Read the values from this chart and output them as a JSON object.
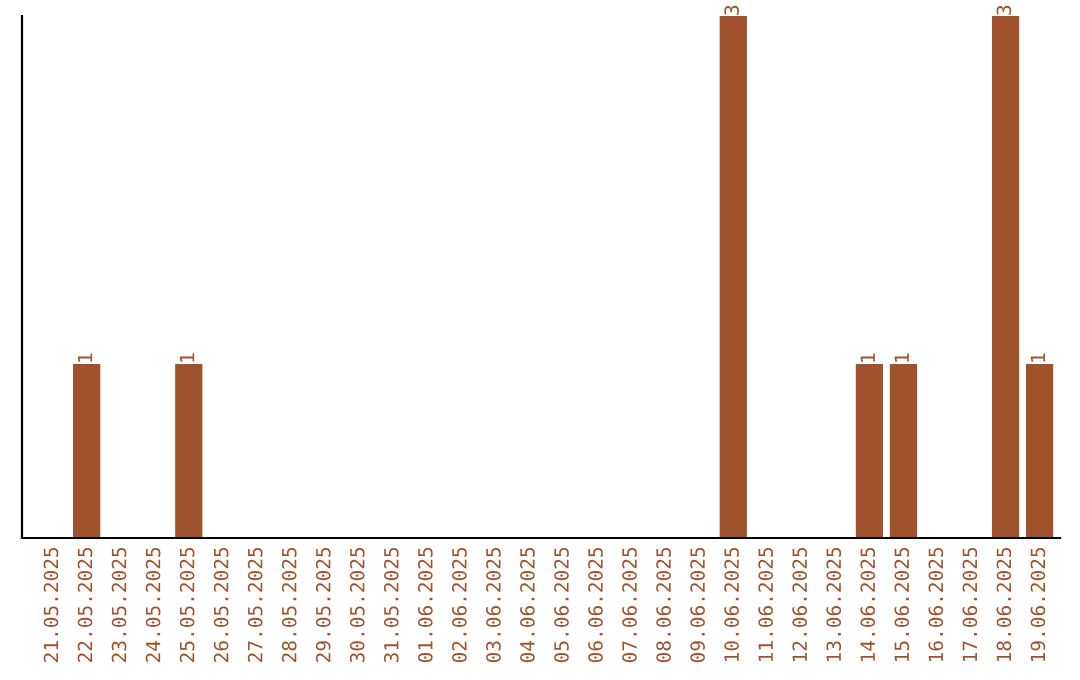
{
  "chart_data": {
    "type": "bar",
    "categories": [
      "21.05.2025",
      "22.05.2025",
      "23.05.2025",
      "24.05.2025",
      "25.05.2025",
      "26.05.2025",
      "27.05.2025",
      "28.05.2025",
      "29.05.2025",
      "30.05.2025",
      "31.05.2025",
      "01.06.2025",
      "02.06.2025",
      "03.06.2025",
      "04.06.2025",
      "05.06.2025",
      "06.06.2025",
      "07.06.2025",
      "08.06.2025",
      "09.06.2025",
      "10.06.2025",
      "11.06.2025",
      "12.06.2025",
      "13.06.2025",
      "14.06.2025",
      "15.06.2025",
      "16.06.2025",
      "17.06.2025",
      "18.06.2025",
      "19.06.2025"
    ],
    "values": [
      0,
      1,
      0,
      0,
      1,
      0,
      0,
      0,
      0,
      0,
      0,
      0,
      0,
      0,
      0,
      0,
      0,
      0,
      0,
      0,
      3,
      0,
      0,
      0,
      1,
      1,
      0,
      0,
      3,
      1
    ],
    "value_labels": [
      null,
      "1",
      null,
      null,
      "1",
      null,
      null,
      null,
      null,
      null,
      null,
      null,
      null,
      null,
      null,
      null,
      null,
      null,
      null,
      null,
      "3",
      null,
      null,
      null,
      "1",
      "1",
      null,
      null,
      "3",
      "1"
    ],
    "color": "#a0522d",
    "tick_labels": "x",
    "grid": false,
    "legend": false
  }
}
